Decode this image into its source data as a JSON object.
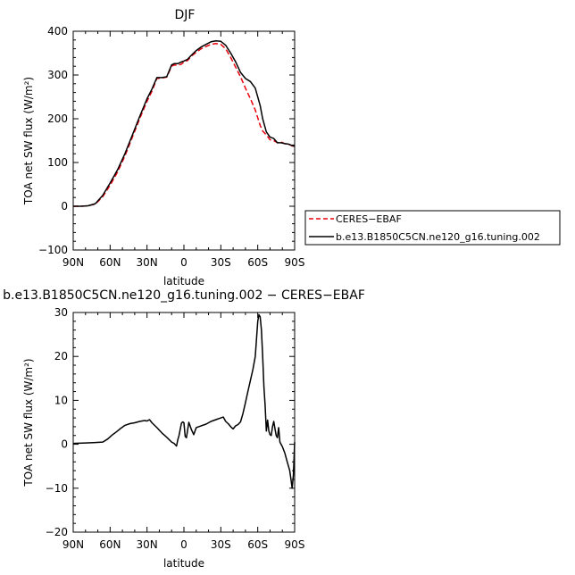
{
  "chart_data": [
    {
      "type": "line",
      "title": "DJF",
      "xlabel": "latitude",
      "ylabel": "TOA net SW flux (W/m²)",
      "xlim": [
        90,
        -90
      ],
      "ylim": [
        -100,
        400
      ],
      "x_tick_labels": [
        "90N",
        "60N",
        "30N",
        "0",
        "30S",
        "60S",
        "90S"
      ],
      "y_tick_labels": [
        "−100",
        "0",
        "100",
        "200",
        "300",
        "400"
      ],
      "legend_position": "right",
      "series": [
        {
          "name": "CERES−EBAF",
          "color": "#e8000b",
          "style": "dashed",
          "x": [
            90,
            84,
            78,
            72,
            66,
            60,
            54,
            48,
            42,
            36,
            30,
            26,
            22,
            18,
            14,
            10,
            8,
            5,
            2,
            0,
            -3,
            -6,
            -10,
            -14,
            -18,
            -22,
            -26,
            -30,
            -34,
            -38,
            -42,
            -46,
            -50,
            -54,
            -58,
            -62,
            -64,
            -67,
            -70,
            -73,
            -76,
            -79,
            -82,
            -85,
            -88,
            -90
          ],
          "y": [
            0,
            0,
            1,
            5,
            22,
            48,
            78,
            115,
            157,
            200,
            240,
            263,
            292,
            293,
            295,
            320,
            323,
            322,
            325,
            330,
            333,
            343,
            352,
            360,
            365,
            370,
            372,
            370,
            360,
            340,
            318,
            296,
            270,
            246,
            220,
            185,
            172,
            163,
            152,
            150,
            145,
            147,
            143,
            142,
            138,
            136
          ]
        },
        {
          "name": "b.e13.B1850C5CN.ne120_g16.tuning.002",
          "color": "#000000",
          "style": "solid",
          "x": [
            90,
            84,
            78,
            72,
            66,
            60,
            54,
            48,
            42,
            36,
            30,
            26,
            22,
            18,
            14,
            10,
            8,
            5,
            2,
            0,
            -3,
            -6,
            -10,
            -14,
            -18,
            -22,
            -26,
            -30,
            -34,
            -38,
            -42,
            -46,
            -50,
            -54,
            -58,
            -62,
            -64,
            -67,
            -70,
            -73,
            -76,
            -79,
            -82,
            -85,
            -88,
            -90
          ],
          "y": [
            0,
            0,
            1,
            6,
            25,
            53,
            83,
            120,
            162,
            205,
            246,
            268,
            294,
            294,
            296,
            323,
            326,
            326,
            330,
            332,
            336,
            345,
            356,
            364,
            370,
            376,
            378,
            377,
            368,
            350,
            330,
            306,
            292,
            285,
            270,
            230,
            200,
            170,
            158,
            155,
            145,
            145,
            143,
            142,
            139,
            137
          ]
        }
      ]
    },
    {
      "type": "line",
      "title": "b.e13.B1850C5CN.ne120_g16.tuning.002 − CERES−EBAF",
      "xlabel": "latitude",
      "ylabel": "TOA net SW flux (W/m²)",
      "xlim": [
        90,
        -90
      ],
      "ylim": [
        -20,
        30
      ],
      "x_tick_labels": [
        "90N",
        "60N",
        "30N",
        "0",
        "30S",
        "60S",
        "90S"
      ],
      "y_tick_labels": [
        "−20",
        "−10",
        "0",
        "10",
        "20",
        "30"
      ],
      "series": [
        {
          "color": "#000000",
          "style": "solid",
          "x": [
            90,
            80,
            72,
            66,
            62,
            58,
            55,
            52,
            48,
            44,
            40,
            36,
            32,
            30,
            28,
            26,
            22,
            18,
            14,
            10,
            8,
            6,
            5,
            4,
            2,
            1,
            0,
            -1,
            -2,
            -4,
            -6,
            -8,
            -10,
            -14,
            -18,
            -22,
            -26,
            -30,
            -32,
            -34,
            -36,
            -38,
            -40,
            -42,
            -44,
            -46,
            -48,
            -50,
            -52,
            -54,
            -56,
            -58,
            -59,
            -60,
            -61,
            -62,
            -63,
            -64,
            -65,
            -66,
            -67,
            -68,
            -69,
            -70,
            -71,
            -72,
            -73,
            -74,
            -75,
            -76,
            -77,
            -78,
            -80,
            -82,
            -84,
            -86,
            -87,
            -88,
            -89,
            -90
          ],
          "y": [
            0.2,
            0.3,
            0.4,
            0.5,
            1.2,
            2.2,
            2.8,
            3.5,
            4.3,
            4.7,
            4.9,
            5.2,
            5.4,
            5.3,
            5.6,
            4.9,
            3.8,
            2.6,
            1.6,
            0.5,
            0.2,
            -0.4,
            1.0,
            2.0,
            4.8,
            5.1,
            4.9,
            1.8,
            1.5,
            5.0,
            3.4,
            2.2,
            3.8,
            4.2,
            4.6,
            5.2,
            5.6,
            6.0,
            6.2,
            5.2,
            4.7,
            4.0,
            3.5,
            4.2,
            4.5,
            5.1,
            7.0,
            9.5,
            12.0,
            14.5,
            17.0,
            20.0,
            24.0,
            28.0,
            29.5,
            29.0,
            26.0,
            20.0,
            13.0,
            9.0,
            3.0,
            5.5,
            3.0,
            2.2,
            2.0,
            4.0,
            5.2,
            3.5,
            2.0,
            1.5,
            3.8,
            0.5,
            -0.5,
            -2.0,
            -4.0,
            -6.0,
            -8.0,
            -10.0,
            -7.0,
            0.5
          ]
        }
      ]
    }
  ]
}
